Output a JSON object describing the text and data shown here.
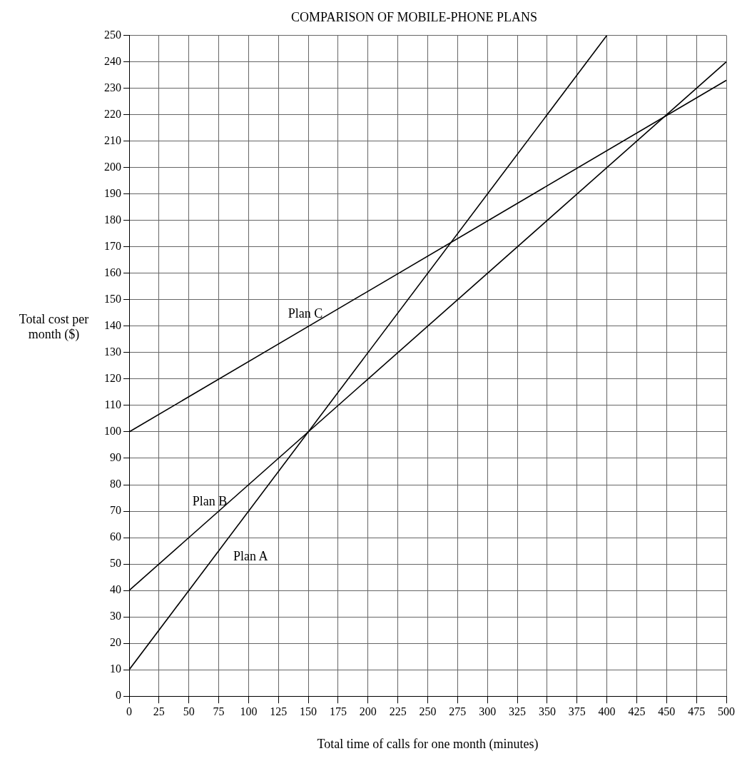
{
  "chart_data": {
    "type": "line",
    "title": "COMPARISON OF MOBILE-PHONE PLANS",
    "xlabel": "Total time of calls for one month (minutes)",
    "ylabel": "Total cost per month ($)",
    "series": [
      {
        "name": "Plan A",
        "color": "#000000",
        "x": [
          0,
          400
        ],
        "values": [
          10,
          250
        ]
      },
      {
        "name": "Plan B",
        "color": "#000000",
        "x": [
          0,
          500
        ],
        "values": [
          40,
          240
        ]
      },
      {
        "name": "Plan C",
        "color": "#000000",
        "x": [
          0,
          500
        ],
        "values": [
          100,
          233
        ]
      }
    ],
    "xlim": [
      0,
      500
    ],
    "xticks": [
      0,
      25,
      50,
      75,
      100,
      125,
      150,
      175,
      200,
      225,
      250,
      275,
      300,
      325,
      350,
      375,
      400,
      425,
      450,
      475,
      500
    ],
    "ylim": [
      0,
      250
    ],
    "yticks": [
      0,
      10,
      20,
      30,
      40,
      50,
      60,
      70,
      80,
      90,
      100,
      110,
      120,
      130,
      140,
      150,
      160,
      170,
      180,
      190,
      200,
      210,
      220,
      230,
      240,
      250
    ],
    "grid": true,
    "legend": false,
    "marker": "none",
    "line_style": "solid"
  }
}
